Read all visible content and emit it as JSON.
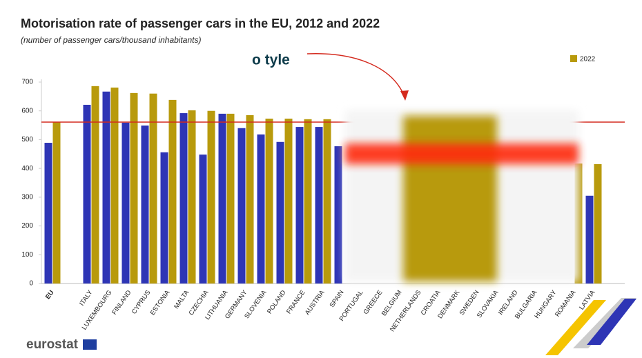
{
  "chart_data": {
    "type": "bar",
    "title": "Motorisation rate of passenger cars in the EU, 2012 and 2022",
    "subtitle": "(number of passenger cars/thousand inhabitants)",
    "annotation": "o tyle",
    "logo": "eurostat",
    "categories": [
      "EU",
      null,
      "ITALY",
      "LUXEMBOURG",
      "FINLAND",
      "CYPRUS",
      "ESTONIA",
      "MALTA",
      "CZECHIA",
      "LITHUANIA",
      "GERMANY",
      "SLOVENIA",
      "POLAND",
      "FRANCE",
      "AUSTRIA",
      "SPAIN",
      "PORTUGAL",
      "GREECE",
      "BELGIUM",
      "NETHERLANDS",
      "CROATIA",
      "DENMARK",
      "SWEDEN",
      "SLOVAKIA",
      "IRELAND",
      "BULGARIA",
      "HUNGARY",
      "ROMANIA",
      "LATVIA"
    ],
    "series": [
      {
        "color": "#2e35b5",
        "values": [
          489,
          null,
          621,
          667,
          559,
          549,
          456,
          592,
          448,
          590,
          540,
          518,
          492,
          544,
          544,
          477,
          null,
          null,
          null,
          null,
          null,
          null,
          null,
          null,
          null,
          null,
          null,
          null,
          305
        ]
      },
      {
        "name": "2022",
        "color": "#b89a0c",
        "values": [
          561,
          null,
          686,
          681,
          662,
          660,
          638,
          602,
          600,
          590,
          585,
          573,
          573,
          571,
          571,
          null,
          null,
          null,
          null,
          null,
          null,
          null,
          null,
          null,
          null,
          null,
          null,
          417,
          415
        ]
      }
    ],
    "reference_line_color": "#d42a1e",
    "ylim": [
      0,
      700
    ],
    "yticks": [
      0,
      100,
      200,
      300,
      400,
      500,
      600,
      700
    ],
    "legend": "top-right"
  }
}
